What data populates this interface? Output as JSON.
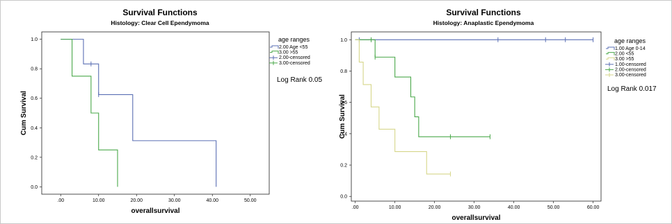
{
  "chart_data": [
    {
      "type": "line",
      "title": "Survival Functions",
      "subtitle": "Histology: Clear Cell Ependymoma",
      "xlabel": "overallsurvival",
      "ylabel": "Cum Survival",
      "xlim": [
        -5,
        55
      ],
      "ylim": [
        -0.05,
        1.05
      ],
      "x_ticks": [
        0,
        10,
        20,
        30,
        40,
        50
      ],
      "x_tick_labels": [
        ".00",
        "10.00",
        "20.00",
        "30.00",
        "40.00",
        "50.00"
      ],
      "y_ticks": [
        0,
        0.2,
        0.4,
        0.6,
        0.8,
        1.0
      ],
      "y_tick_labels": [
        "0.0",
        "0.2",
        "0.4",
        "0.6",
        "0.8",
        "1.0"
      ],
      "legend": {
        "title": "age ranges",
        "placement": "right",
        "entries": [
          {
            "label": "2.00 Age <55",
            "color": "#5a6fb4",
            "kind": "line"
          },
          {
            "label": "3.00      >55",
            "color": "#4aa84a",
            "kind": "line"
          },
          {
            "label": "2.00-censored",
            "color": "#5a6fb4",
            "kind": "censor"
          },
          {
            "label": "3.00-censored",
            "color": "#4aa84a",
            "kind": "censor"
          }
        ]
      },
      "annotation": "Log Rank 0.05",
      "series": [
        {
          "color": "#5a6fb4",
          "steps": [
            [
              0,
              1.0
            ],
            [
              6,
              0.833
            ],
            [
              10,
              0.625
            ],
            [
              19,
              0.3125
            ],
            [
              41,
              0.0
            ]
          ],
          "censored": [
            [
              8,
              0.833
            ],
            [
              10,
              0.625
            ]
          ]
        },
        {
          "color": "#4aa84a",
          "steps": [
            [
              0,
              1.0
            ],
            [
              3,
              0.75
            ],
            [
              8,
              0.5
            ],
            [
              10,
              0.25
            ],
            [
              15,
              0.0
            ]
          ],
          "censored": []
        }
      ]
    },
    {
      "type": "line",
      "title": "Survival Functions",
      "subtitle": "Histology: Anaplastic Ependymoma",
      "xlabel": "overallsurvival",
      "ylabel": "Cum Survival",
      "xlim": [
        -1,
        62
      ],
      "ylim": [
        -0.03,
        1.05
      ],
      "x_ticks": [
        0,
        10,
        20,
        30,
        40,
        50,
        60
      ],
      "x_tick_labels": [
        ".00",
        "10.00",
        "20.00",
        "30.00",
        "40.00",
        "50.00",
        "60.00"
      ],
      "y_ticks": [
        0,
        0.2,
        0.4,
        0.6,
        0.8,
        1.0
      ],
      "y_tick_labels": [
        "0.0",
        "0.2",
        "0.4",
        "0.6",
        "0.8",
        "1.0"
      ],
      "legend": {
        "title": "age ranges",
        "placement": "right",
        "entries": [
          {
            "label": "1.00  Age 0-14",
            "color": "#5a6fb4",
            "kind": "line"
          },
          {
            "label": "2.00        <55",
            "color": "#4aa84a",
            "kind": "line"
          },
          {
            "label": "3.00        >55",
            "color": "#d6d68a",
            "kind": "line"
          },
          {
            "label": "1.00-censored",
            "color": "#5a6fb4",
            "kind": "censor"
          },
          {
            "label": "2.00-censored",
            "color": "#4aa84a",
            "kind": "censor"
          },
          {
            "label": "3.00-censored",
            "color": "#d6d68a",
            "kind": "censor"
          }
        ]
      },
      "annotation": "Log Rank 0.017",
      "series": [
        {
          "color": "#5a6fb4",
          "steps": [
            [
              0,
              1.0
            ],
            [
              60,
              1.0
            ]
          ],
          "censored": [
            [
              1,
              1.0
            ],
            [
              36,
              1.0
            ],
            [
              48,
              1.0
            ],
            [
              53,
              1.0
            ],
            [
              60,
              1.0
            ]
          ]
        },
        {
          "color": "#4aa84a",
          "steps": [
            [
              0,
              1.0
            ],
            [
              5,
              0.889
            ],
            [
              10,
              0.762
            ],
            [
              14,
              0.635
            ],
            [
              15,
              0.508
            ],
            [
              16,
              0.381
            ],
            [
              34,
              0.381
            ]
          ],
          "censored": [
            [
              4,
              1.0
            ],
            [
              5,
              0.889
            ],
            [
              24,
              0.381
            ],
            [
              34,
              0.381
            ]
          ]
        },
        {
          "color": "#d6d68a",
          "steps": [
            [
              0,
              1.0
            ],
            [
              1,
              0.857
            ],
            [
              2,
              0.714
            ],
            [
              4,
              0.571
            ],
            [
              6,
              0.429
            ],
            [
              10,
              0.286
            ],
            [
              18,
              0.143
            ],
            [
              24,
              0.143
            ]
          ],
          "censored": [
            [
              24,
              0.143
            ]
          ]
        }
      ]
    }
  ]
}
